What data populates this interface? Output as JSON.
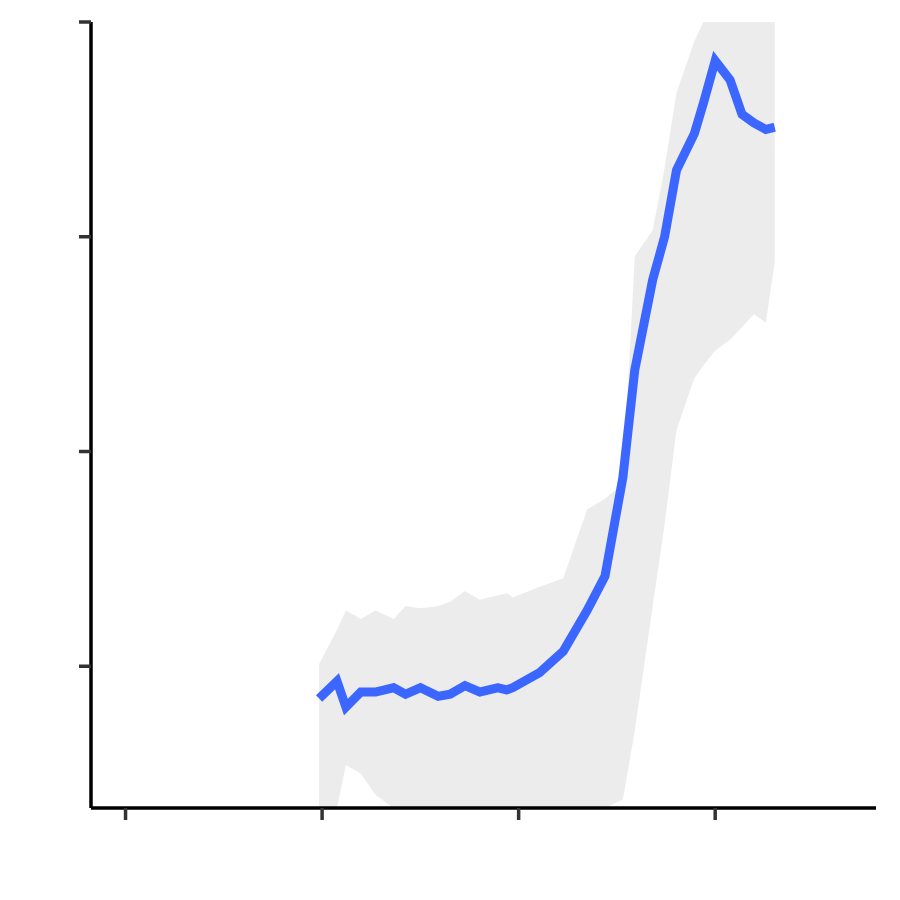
{
  "chart_data": {
    "type": "line",
    "title": "",
    "xlabel": "",
    "ylabel": "",
    "xlim": [
      -2.18,
      11
    ],
    "ylim": [
      -0.66,
      3.0
    ],
    "x_ticks": [
      -1.6,
      1.7,
      5.0,
      8.3
    ],
    "y_ticks": [
      0,
      1,
      2,
      3
    ],
    "tick_labels_visible": false,
    "grid": false,
    "legend": "none",
    "colors": {
      "line": "#3b66ff",
      "band": "#ececec",
      "axis": "#000000",
      "tick": "#333333"
    },
    "series": [
      {
        "x": [
          1.65,
          1.95,
          2.1,
          2.35,
          2.6,
          2.9,
          3.1,
          3.35,
          3.65,
          3.85,
          4.1,
          4.35,
          4.65,
          4.8,
          4.9,
          5.35,
          5.75,
          6.15,
          6.45,
          6.75,
          6.95,
          7.25,
          7.45,
          7.65,
          7.95,
          8.1,
          8.3,
          8.55,
          8.75,
          8.95,
          9.15,
          9.3
        ],
        "y": [
          -0.15,
          -0.07,
          -0.19,
          -0.12,
          -0.12,
          -0.1,
          -0.13,
          -0.1,
          -0.14,
          -0.13,
          -0.09,
          -0.12,
          -0.1,
          -0.11,
          -0.1,
          -0.03,
          0.07,
          0.26,
          0.42,
          0.88,
          1.38,
          1.8,
          2.0,
          2.31,
          2.48,
          2.62,
          2.82,
          2.73,
          2.57,
          2.53,
          2.5,
          2.51
        ],
        "band_upper": [
          0.01,
          0.17,
          0.26,
          0.22,
          0.26,
          0.22,
          0.28,
          0.27,
          0.28,
          0.3,
          0.35,
          0.31,
          0.33,
          0.34,
          0.32,
          0.37,
          0.41,
          0.73,
          0.78,
          0.85,
          1.91,
          2.03,
          2.32,
          2.67,
          2.91,
          3.0,
          3.0,
          3.0,
          3.0,
          3.0,
          3.0,
          3.0
        ],
        "band_lower": [
          -0.66,
          -0.66,
          -0.46,
          -0.5,
          -0.6,
          -0.66,
          -0.66,
          -0.66,
          -0.66,
          -0.66,
          -0.66,
          -0.66,
          -0.66,
          -0.66,
          -0.66,
          -0.66,
          -0.66,
          -0.66,
          -0.66,
          -0.62,
          -0.3,
          0.28,
          0.66,
          1.1,
          1.34,
          1.4,
          1.47,
          1.52,
          1.58,
          1.64,
          1.6,
          1.88
        ]
      }
    ]
  }
}
